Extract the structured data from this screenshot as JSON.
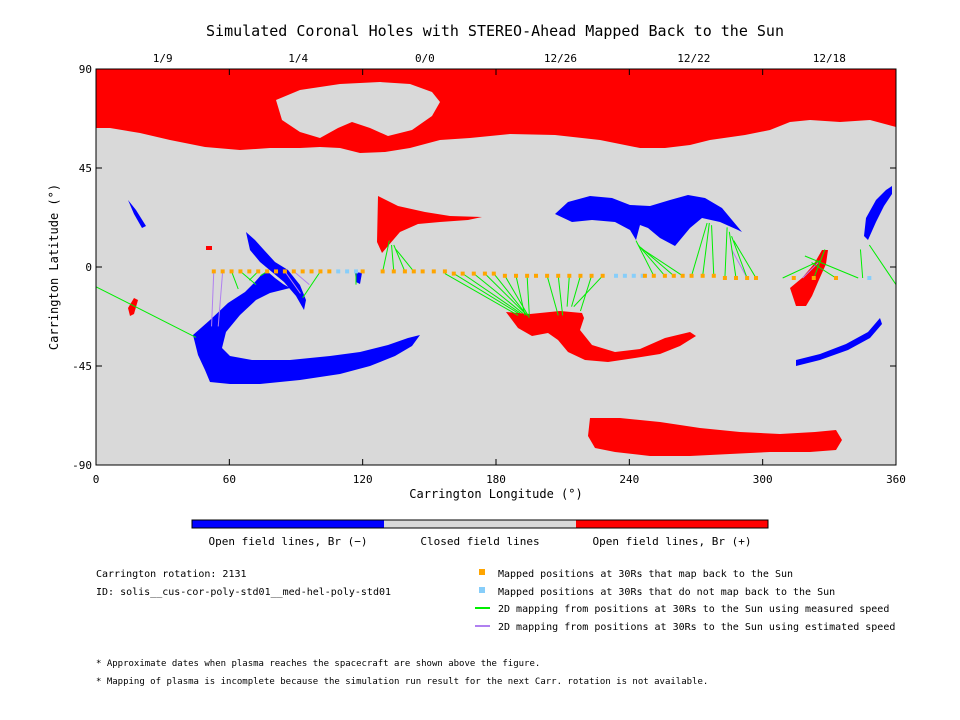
{
  "chart_data": {
    "type": "scatter",
    "title": "Simulated Coronal Holes with STEREO-Ahead Mapped Back to the Sun",
    "xlabel": "Carrington Longitude (°)",
    "ylabel": "Carrington Latitude (°)",
    "xlim": [
      0,
      360
    ],
    "ylim": [
      -90,
      90
    ],
    "x_ticks": [
      {
        "value": 0,
        "label": "0"
      },
      {
        "value": 60,
        "label": "60"
      },
      {
        "value": 120,
        "label": "120"
      },
      {
        "value": 180,
        "label": "180"
      },
      {
        "value": 240,
        "label": "240"
      },
      {
        "value": 300,
        "label": "300"
      },
      {
        "value": 360,
        "label": "360"
      }
    ],
    "y_ticks": [
      {
        "value": 90,
        "label": "90"
      },
      {
        "value": 45,
        "label": "45"
      },
      {
        "value": 0,
        "label": "0"
      },
      {
        "value": -45,
        "label": "-45"
      },
      {
        "value": -90,
        "label": "-90"
      }
    ],
    "top_date_ticks": [
      {
        "lon": 30,
        "label": "1/9"
      },
      {
        "lon": 91,
        "label": "1/4"
      },
      {
        "lon": 148,
        "label": "0/0"
      },
      {
        "lon": 209,
        "label": "12/26"
      },
      {
        "lon": 269,
        "label": "12/22"
      },
      {
        "lon": 330,
        "label": "12/18"
      }
    ],
    "grid": false,
    "colorbar": [
      {
        "label": "Open field lines, Br (−)",
        "color": "#0000ff"
      },
      {
        "label": "Closed field lines",
        "color": "#d9d9d9"
      },
      {
        "label": "Open field lines, Br (+)",
        "color": "#ff0000"
      }
    ],
    "legend": [
      {
        "label": "Mapped positions at 30Rs that map back to the Sun",
        "color": "#ffa500",
        "kind": "square"
      },
      {
        "label": "Mapped positions at 30Rs that do not map back to the Sun",
        "color": "#87cefa",
        "kind": "square"
      },
      {
        "label": "2D mapping from positions at 30Rs to the Sun using measured speed",
        "color": "#00ee00",
        "kind": "line"
      },
      {
        "label": "2D mapping from positions at 30Rs to the Sun using estimated speed",
        "color": "#b080f0",
        "kind": "line"
      }
    ],
    "info": {
      "rotation": "Carrington rotation: 2131",
      "id": "ID: solis__cus-cor-poly-std01__med-hel-poly-std01"
    },
    "notes": [
      "* Approximate dates when plasma reaches the spacecraft are shown above the figure.",
      "* Mapping of plasma is incomplete because the simulation run result for the next Carr. rotation is not available."
    ],
    "mapped_points": [
      {
        "lon": 53,
        "lat": -2
      },
      {
        "lon": 57,
        "lat": -2
      },
      {
        "lon": 61,
        "lat": -2
      },
      {
        "lon": 65,
        "lat": -2
      },
      {
        "lon": 69,
        "lat": -2
      },
      {
        "lon": 73,
        "lat": -2
      },
      {
        "lon": 77,
        "lat": -2
      },
      {
        "lon": 81,
        "lat": -2
      },
      {
        "lon": 85,
        "lat": -2
      },
      {
        "lon": 89,
        "lat": -2
      },
      {
        "lon": 93,
        "lat": -2
      },
      {
        "lon": 97,
        "lat": -2
      },
      {
        "lon": 101,
        "lat": -2
      },
      {
        "lon": 105,
        "lat": -2
      },
      {
        "lon": 120,
        "lat": -2
      },
      {
        "lon": 129,
        "lat": -2
      },
      {
        "lon": 134,
        "lat": -2
      },
      {
        "lon": 139,
        "lat": -2
      },
      {
        "lon": 143,
        "lat": -2
      },
      {
        "lon": 147,
        "lat": -2
      },
      {
        "lon": 152,
        "lat": -2
      },
      {
        "lon": 157,
        "lat": -2
      },
      {
        "lon": 161,
        "lat": -3
      },
      {
        "lon": 165,
        "lat": -3
      },
      {
        "lon": 170,
        "lat": -3
      },
      {
        "lon": 175,
        "lat": -3
      },
      {
        "lon": 179,
        "lat": -3
      },
      {
        "lon": 184,
        "lat": -4
      },
      {
        "lon": 189,
        "lat": -4
      },
      {
        "lon": 194,
        "lat": -4
      },
      {
        "lon": 198,
        "lat": -4
      },
      {
        "lon": 203,
        "lat": -4
      },
      {
        "lon": 208,
        "lat": -4
      },
      {
        "lon": 213,
        "lat": -4
      },
      {
        "lon": 218,
        "lat": -4
      },
      {
        "lon": 223,
        "lat": -4
      },
      {
        "lon": 228,
        "lat": -4
      },
      {
        "lon": 247,
        "lat": -4
      },
      {
        "lon": 251,
        "lat": -4
      },
      {
        "lon": 256,
        "lat": -4
      },
      {
        "lon": 260,
        "lat": -4
      },
      {
        "lon": 264,
        "lat": -4
      },
      {
        "lon": 268,
        "lat": -4
      },
      {
        "lon": 273,
        "lat": -4
      },
      {
        "lon": 278,
        "lat": -4
      },
      {
        "lon": 283,
        "lat": -5
      },
      {
        "lon": 288,
        "lat": -5
      },
      {
        "lon": 293,
        "lat": -5
      },
      {
        "lon": 297,
        "lat": -5
      },
      {
        "lon": 314,
        "lat": -5
      },
      {
        "lon": 323,
        "lat": -5
      },
      {
        "lon": 333,
        "lat": -5
      }
    ],
    "unmapped_points": [
      {
        "lon": 109,
        "lat": -2
      },
      {
        "lon": 113,
        "lat": -2
      },
      {
        "lon": 117,
        "lat": -2
      },
      {
        "lon": 234,
        "lat": -4
      },
      {
        "lon": 238,
        "lat": -4
      },
      {
        "lon": 242,
        "lat": -4
      },
      {
        "lon": 246,
        "lat": -4
      },
      {
        "lon": 348,
        "lat": -5
      }
    ],
    "measured_lines": [
      {
        "from": [
          0,
          -9
        ],
        "to": [
          45,
          -32
        ]
      },
      {
        "from": [
          61,
          -2
        ],
        "to": [
          64,
          -10
        ]
      },
      {
        "from": [
          65,
          -2
        ],
        "to": [
          72,
          -8
        ]
      },
      {
        "from": [
          73,
          -2
        ],
        "to": [
          69,
          -6
        ]
      },
      {
        "from": [
          77,
          -2
        ],
        "to": [
          74,
          -4
        ]
      },
      {
        "from": [
          101,
          -2
        ],
        "to": [
          93,
          -14
        ]
      },
      {
        "from": [
          117,
          -2
        ],
        "to": [
          117,
          -8
        ]
      },
      {
        "from": [
          129,
          -2
        ],
        "to": [
          132,
          12
        ]
      },
      {
        "from": [
          134,
          -2
        ],
        "to": [
          133,
          10
        ]
      },
      {
        "from": [
          139,
          -2
        ],
        "to": [
          134,
          10
        ]
      },
      {
        "from": [
          143,
          -2
        ],
        "to": [
          135,
          8
        ]
      },
      {
        "from": [
          157,
          -3
        ],
        "to": [
          190,
          -22
        ]
      },
      {
        "from": [
          161,
          -3
        ],
        "to": [
          190,
          -21
        ]
      },
      {
        "from": [
          165,
          -3
        ],
        "to": [
          191,
          -21
        ]
      },
      {
        "from": [
          170,
          -3
        ],
        "to": [
          192,
          -21
        ]
      },
      {
        "from": [
          175,
          -3
        ],
        "to": [
          193,
          -21
        ]
      },
      {
        "from": [
          179,
          -3
        ],
        "to": [
          194,
          -22
        ]
      },
      {
        "from": [
          184,
          -4
        ],
        "to": [
          195,
          -23
        ]
      },
      {
        "from": [
          189,
          -4
        ],
        "to": [
          193,
          -22
        ]
      },
      {
        "from": [
          194,
          -4
        ],
        "to": [
          195,
          -22
        ]
      },
      {
        "from": [
          203,
          -4
        ],
        "to": [
          208,
          -22
        ]
      },
      {
        "from": [
          208,
          -4
        ],
        "to": [
          210,
          -22
        ]
      },
      {
        "from": [
          213,
          -4
        ],
        "to": [
          212,
          -18
        ]
      },
      {
        "from": [
          218,
          -4
        ],
        "to": [
          214,
          -18
        ]
      },
      {
        "from": [
          223,
          -4
        ],
        "to": [
          218,
          -20
        ]
      },
      {
        "from": [
          228,
          -4
        ],
        "to": [
          215,
          -18
        ]
      },
      {
        "from": [
          251,
          -4
        ],
        "to": [
          243,
          12
        ]
      },
      {
        "from": [
          256,
          -4
        ],
        "to": [
          244,
          10
        ]
      },
      {
        "from": [
          260,
          -4
        ],
        "to": [
          245,
          9
        ]
      },
      {
        "from": [
          264,
          -4
        ],
        "to": [
          246,
          8
        ]
      },
      {
        "from": [
          268,
          -4
        ],
        "to": [
          275,
          20
        ]
      },
      {
        "from": [
          273,
          -4
        ],
        "to": [
          276,
          20
        ]
      },
      {
        "from": [
          278,
          -4
        ],
        "to": [
          277,
          19
        ]
      },
      {
        "from": [
          283,
          -5
        ],
        "to": [
          284,
          18
        ]
      },
      {
        "from": [
          288,
          -5
        ],
        "to": [
          285,
          16
        ]
      },
      {
        "from": [
          293,
          -5
        ],
        "to": [
          286,
          14
        ]
      },
      {
        "from": [
          297,
          -5
        ],
        "to": [
          287,
          12
        ]
      },
      {
        "from": [
          309,
          -5
        ],
        "to": [
          326,
          3
        ]
      },
      {
        "from": [
          323,
          -5
        ],
        "to": [
          328,
          8
        ]
      },
      {
        "from": [
          333,
          -5
        ],
        "to": [
          322,
          2
        ]
      },
      {
        "from": [
          343,
          -5
        ],
        "to": [
          319,
          5
        ]
      },
      {
        "from": [
          345,
          -5
        ],
        "to": [
          344,
          8
        ]
      },
      {
        "from": [
          360,
          -8
        ],
        "to": [
          348,
          10
        ]
      }
    ],
    "estimated_lines": [
      {
        "from": [
          53,
          -2
        ],
        "to": [
          52,
          -27
        ]
      },
      {
        "from": [
          57,
          -2
        ],
        "to": [
          55,
          -27
        ]
      },
      {
        "from": [
          85,
          -2
        ],
        "to": [
          92,
          -12
        ]
      },
      {
        "from": [
          89,
          -2
        ],
        "to": [
          96,
          -8
        ]
      },
      {
        "from": [
          293,
          -5
        ],
        "to": [
          286,
          8
        ]
      },
      {
        "from": [
          318,
          -5
        ],
        "to": [
          325,
          2
        ]
      }
    ]
  }
}
